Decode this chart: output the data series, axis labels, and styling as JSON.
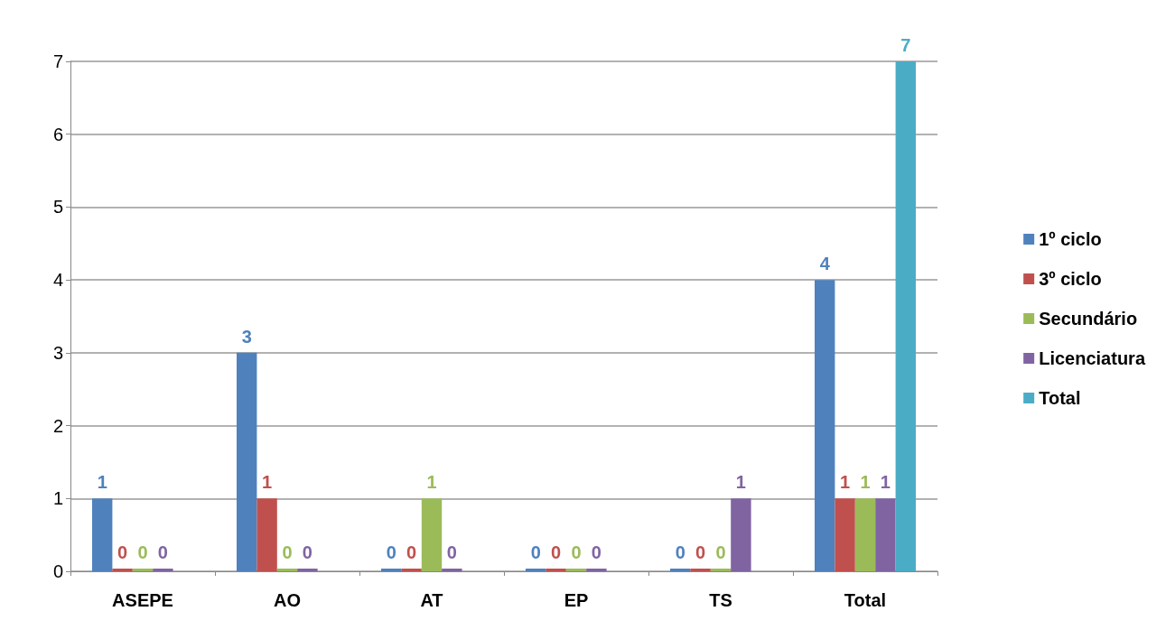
{
  "chart_data": {
    "type": "bar",
    "categories": [
      "ASEPE",
      "AO",
      "AT",
      "EP",
      "TS",
      "Total"
    ],
    "series": [
      {
        "name": "1º ciclo",
        "color": "#4f81bd",
        "values": [
          1,
          3,
          0,
          0,
          0,
          4
        ]
      },
      {
        "name": "3º ciclo",
        "color": "#c0504d",
        "values": [
          0,
          1,
          0,
          0,
          0,
          1
        ]
      },
      {
        "name": "Secundário",
        "color": "#9bbb59",
        "values": [
          0,
          0,
          1,
          0,
          0,
          1
        ]
      },
      {
        "name": "Licenciatura",
        "color": "#8064a2",
        "values": [
          0,
          0,
          0,
          0,
          1,
          1
        ]
      },
      {
        "name": "Total",
        "color": "#4bacc6",
        "values": [
          null,
          null,
          null,
          null,
          null,
          7
        ]
      }
    ],
    "ylim": [
      0,
      7
    ],
    "yticks": [
      0,
      1,
      2,
      3,
      4,
      5,
      6,
      7
    ],
    "grid": "y",
    "legend": "right",
    "data_labels": true
  }
}
